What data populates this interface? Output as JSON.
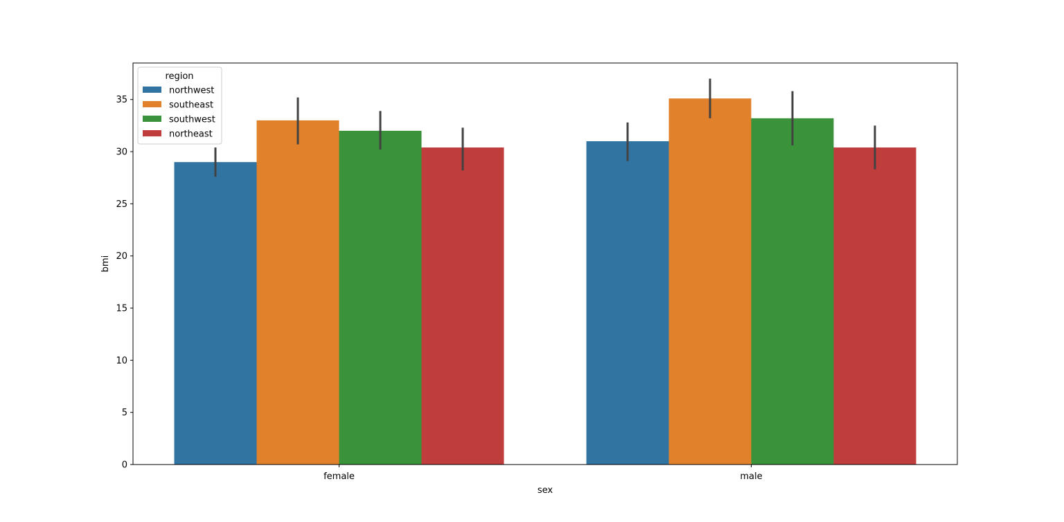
{
  "chart_data": {
    "type": "bar",
    "title": "",
    "xlabel": "sex",
    "ylabel": "bmi",
    "categories": [
      "female",
      "male"
    ],
    "ylim": [
      0,
      38.5
    ],
    "yticks": [
      0,
      5,
      10,
      15,
      20,
      25,
      30,
      35
    ],
    "grid": false,
    "legend": {
      "title": "region",
      "placement": "top-left"
    },
    "series": [
      {
        "name": "northwest",
        "color": "#3274a1",
        "values": [
          29.0,
          31.0
        ],
        "ci": [
          [
            27.6,
            30.4
          ],
          [
            29.1,
            32.8
          ]
        ]
      },
      {
        "name": "southeast",
        "color": "#e1812c",
        "values": [
          33.0,
          35.1
        ],
        "ci": [
          [
            30.7,
            35.2
          ],
          [
            33.2,
            37.0
          ]
        ]
      },
      {
        "name": "southwest",
        "color": "#3a923a",
        "values": [
          32.0,
          33.2
        ],
        "ci": [
          [
            30.2,
            33.9
          ],
          [
            30.6,
            35.8
          ]
        ]
      },
      {
        "name": "northeast",
        "color": "#c03d3e",
        "values": [
          30.4,
          30.4
        ],
        "ci": [
          [
            28.2,
            32.3
          ],
          [
            28.3,
            32.5
          ]
        ]
      }
    ]
  }
}
